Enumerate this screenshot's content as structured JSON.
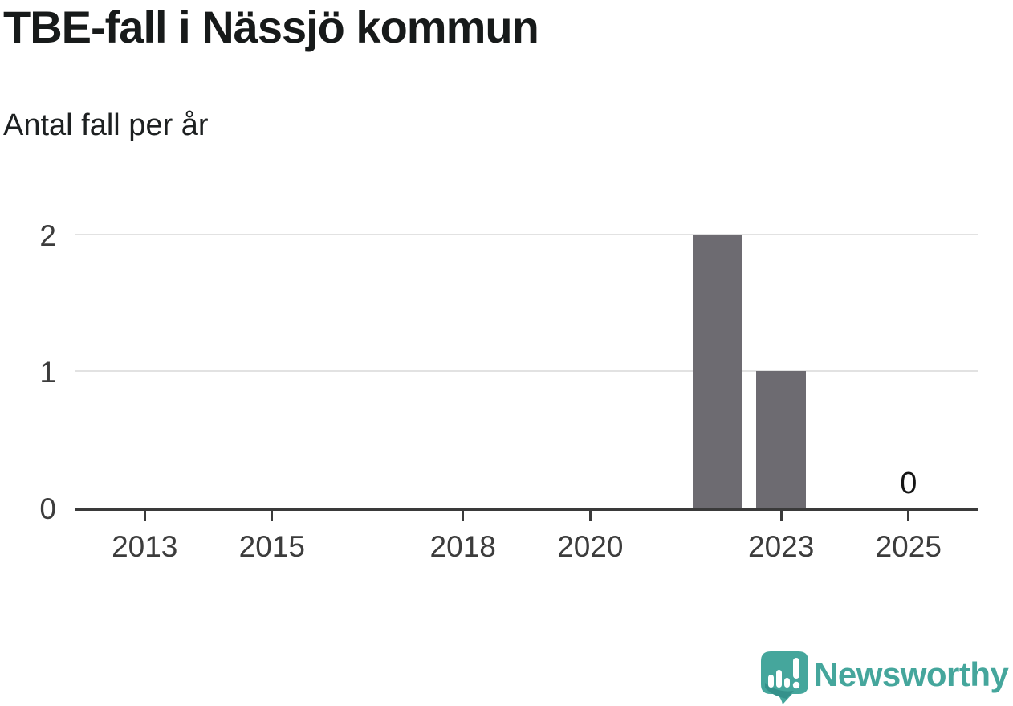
{
  "header": {
    "title": "TBE-fall i Nässjö kommun",
    "subtitle": "Antal fall per år"
  },
  "chart_data": {
    "type": "bar",
    "title": "TBE-fall i Nässjö kommun",
    "subtitle": "Antal fall per år",
    "xlabel": "",
    "ylabel": "Antal fall per år",
    "bars": [
      {
        "x": 2022,
        "y": 2
      },
      {
        "x": 2023,
        "y": 1
      }
    ],
    "annotations": [
      {
        "x": 2025,
        "y": 0,
        "label": "0"
      }
    ],
    "xticks": [
      2013,
      2015,
      2018,
      2020,
      2023,
      2025
    ],
    "yticks": [
      0,
      1,
      2
    ],
    "xlim": [
      2011.9,
      2026.1
    ],
    "ylim": [
      0,
      2.25
    ],
    "grid": "horizontal-only",
    "legend": "none",
    "bar_color": "#6D6B71",
    "axis_color": "#3a3a3a",
    "gridline_color": "#e2e2e2"
  },
  "footer": {
    "brand": "Newsworthy",
    "brand_color": "#45a69c",
    "logo_icon": "newsworthy-speech-bubble-bar-chart-icon"
  }
}
